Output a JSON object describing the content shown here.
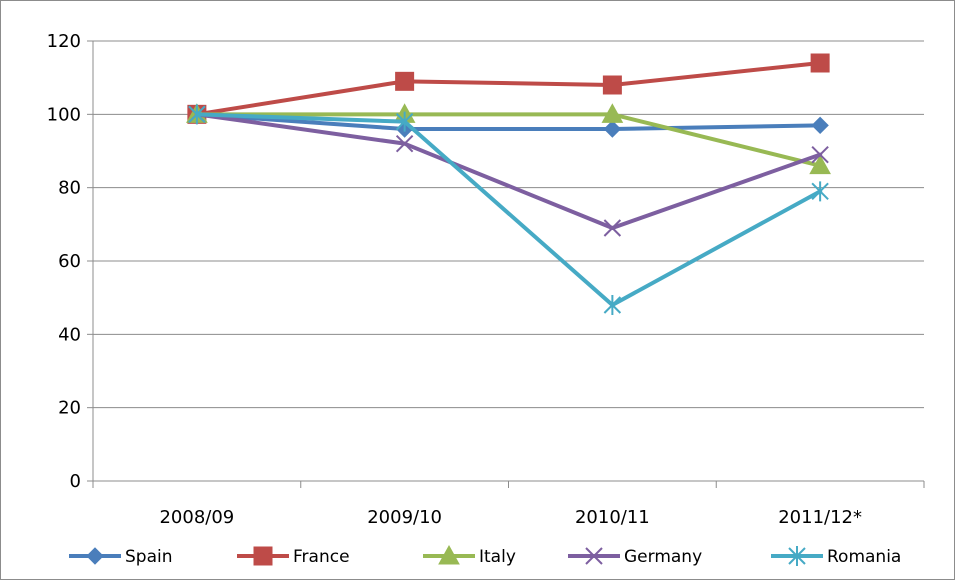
{
  "chart_data": {
    "type": "line",
    "title": "",
    "xlabel": "",
    "ylabel": "",
    "categories": [
      "2008/09",
      "2009/10",
      "2010/11",
      "2011/12*"
    ],
    "ylim": [
      0,
      120
    ],
    "yticks": [
      0,
      20,
      40,
      60,
      80,
      100,
      120
    ],
    "grid": "horizontal",
    "legend_position": "bottom",
    "series": [
      {
        "name": "Spain",
        "color": "#4a7ebb",
        "marker": "diamond",
        "values": [
          100,
          96,
          96,
          97
        ]
      },
      {
        "name": "France",
        "color": "#be4b48",
        "marker": "square",
        "values": [
          100,
          109,
          108,
          114
        ]
      },
      {
        "name": "Italy",
        "color": "#98b954",
        "marker": "triangle",
        "values": [
          100,
          100,
          100,
          86
        ]
      },
      {
        "name": "Germany",
        "color": "#7d5fa0",
        "marker": "x",
        "values": [
          100,
          92,
          69,
          89
        ]
      },
      {
        "name": "Romania",
        "color": "#46aac5",
        "marker": "star",
        "values": [
          100,
          98,
          48,
          79
        ]
      }
    ]
  }
}
